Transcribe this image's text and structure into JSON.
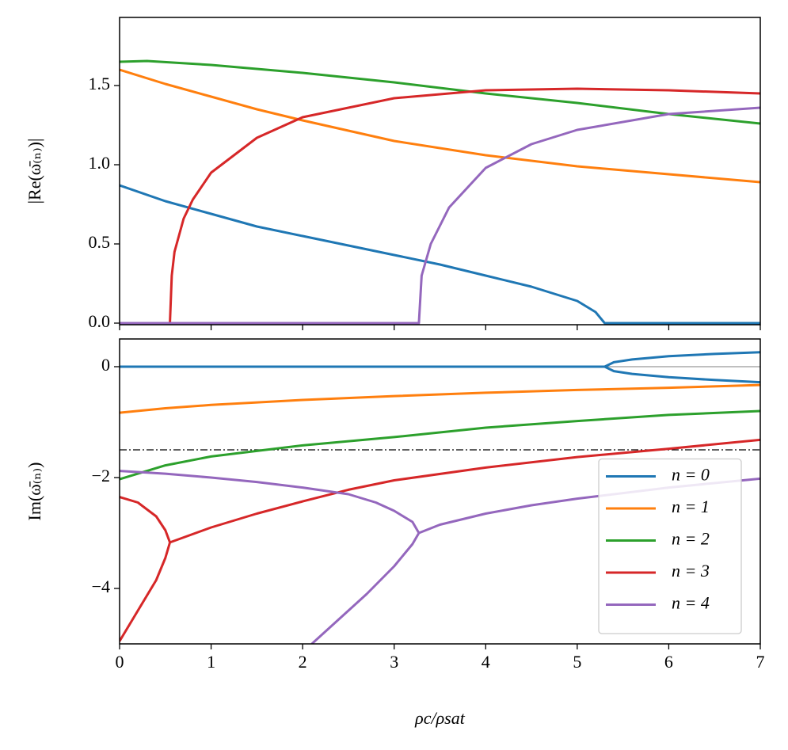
{
  "chart_data": [
    {
      "type": "line",
      "ylabel": "|Re(ω̄₍ₙ₎)|",
      "xlim": [
        0,
        7
      ],
      "xticks": [
        0,
        1,
        2,
        3,
        4,
        5,
        6,
        7
      ],
      "ylim": [
        -0.01,
        1.93
      ],
      "yticks": [
        {
          "value": 0,
          "label": "0.0"
        },
        0.5,
        {
          "value": 1,
          "label": "1.0"
        },
        1.5
      ],
      "series": [
        {
          "color": "#1f77b4",
          "x": [
            0,
            0.5,
            1,
            1.5,
            2,
            2.5,
            3,
            3.5,
            4,
            4.5,
            5,
            5.2,
            5.3,
            6,
            7
          ],
          "values": [
            0.87,
            0.77,
            0.69,
            0.61,
            0.55,
            0.49,
            0.43,
            0.37,
            0.3,
            0.23,
            0.14,
            0.07,
            0,
            0,
            0
          ]
        },
        {
          "color": "#ff7f0e",
          "x": [
            0,
            0.5,
            1,
            1.5,
            2,
            3,
            4,
            5,
            6,
            7
          ],
          "values": [
            1.6,
            1.51,
            1.43,
            1.35,
            1.28,
            1.15,
            1.06,
            0.99,
            0.94,
            0.89
          ]
        },
        {
          "color": "#2ca02c",
          "x": [
            0,
            0.3,
            1,
            2,
            3,
            4,
            5,
            6,
            7
          ],
          "values": [
            1.65,
            1.655,
            1.63,
            1.58,
            1.52,
            1.45,
            1.39,
            1.32,
            1.26
          ]
        },
        {
          "color": "#d62728",
          "x": [
            0,
            0.55,
            0.57,
            0.6,
            0.7,
            0.8,
            1,
            1.5,
            2,
            3,
            4,
            5,
            6,
            7
          ],
          "values": [
            0,
            0,
            0.3,
            0.45,
            0.66,
            0.78,
            0.95,
            1.17,
            1.3,
            1.42,
            1.47,
            1.48,
            1.47,
            1.45
          ]
        },
        {
          "color": "#9467bd",
          "x": [
            0,
            3.27,
            3.3,
            3.4,
            3.6,
            4,
            4.5,
            5,
            6,
            7
          ],
          "values": [
            0,
            0,
            0.3,
            0.5,
            0.73,
            0.98,
            1.13,
            1.22,
            1.32,
            1.36
          ]
        }
      ]
    },
    {
      "type": "line",
      "ylabel": "Im(ω̄₍ₙ₎)",
      "xlabel": "ρc/ρsat",
      "xlim": [
        0,
        7
      ],
      "xticks": [
        0,
        1,
        2,
        3,
        4,
        5,
        6,
        7
      ],
      "ylim": [
        -5,
        0.5
      ],
      "yticks": [
        {
          "value": -4,
          "label": "−4"
        },
        {
          "value": -2,
          "label": "−2"
        },
        0
      ],
      "reference_lines": [
        {
          "value": 0,
          "color": "#999999",
          "style": "solid"
        },
        {
          "value": -1.5,
          "color": "#000000",
          "style": "dashdot"
        }
      ],
      "legend": "lower right",
      "series": [
        {
          "name": "n = 0",
          "color": "#1f77b4",
          "x": [
            0,
            5.3,
            5.4,
            5.6,
            6,
            6.5,
            7,
            null,
            5.3,
            5.4,
            5.6,
            6,
            6.5,
            7
          ],
          "values": [
            0,
            0,
            0.08,
            0.13,
            0.19,
            0.23,
            0.26,
            null,
            0,
            -0.08,
            -0.13,
            -0.19,
            -0.24,
            -0.28
          ]
        },
        {
          "name": "n = 1",
          "color": "#ff7f0e",
          "x": [
            0,
            0.5,
            1,
            2,
            3,
            4,
            5,
            6,
            7
          ],
          "values": [
            -0.83,
            -0.75,
            -0.69,
            -0.6,
            -0.53,
            -0.47,
            -0.42,
            -0.38,
            -0.33
          ]
        },
        {
          "name": "n = 2",
          "color": "#2ca02c",
          "x": [
            0,
            0.5,
            1,
            2,
            3,
            4,
            5,
            6,
            7
          ],
          "values": [
            -2.03,
            -1.78,
            -1.62,
            -1.42,
            -1.27,
            -1.1,
            -0.98,
            -0.87,
            -0.8
          ]
        },
        {
          "name": "n = 3",
          "color": "#d62728",
          "x": [
            0,
            0.2,
            0.4,
            0.5,
            0.55,
            0.5,
            0.4,
            0.2,
            0,
            null,
            0.55,
            1,
            1.5,
            2,
            2.5,
            3,
            4,
            5,
            6,
            7
          ],
          "values": [
            -4.95,
            -4.4,
            -3.85,
            -3.45,
            -3.17,
            -2.95,
            -2.7,
            -2.45,
            -2.35,
            null,
            -3.17,
            -2.9,
            -2.65,
            -2.43,
            -2.22,
            -2.05,
            -1.82,
            -1.63,
            -1.48,
            -1.32
          ]
        },
        {
          "name": "n = 4",
          "color": "#9467bd",
          "x": [
            0,
            0.5,
            1,
            1.5,
            2,
            2.5,
            2.8,
            3,
            3.2,
            3.27,
            3.2,
            3,
            2.7,
            2.4,
            2.1,
            null,
            3.27,
            3.5,
            4,
            4.5,
            5,
            6,
            7
          ],
          "values": [
            -1.88,
            -1.93,
            -2,
            -2.08,
            -2.18,
            -2.3,
            -2.45,
            -2.6,
            -2.8,
            -3,
            -3.2,
            -3.6,
            -4.1,
            -4.55,
            -5,
            null,
            -3,
            -2.85,
            -2.65,
            -2.5,
            -2.38,
            -2.18,
            -2.02
          ]
        }
      ]
    }
  ]
}
